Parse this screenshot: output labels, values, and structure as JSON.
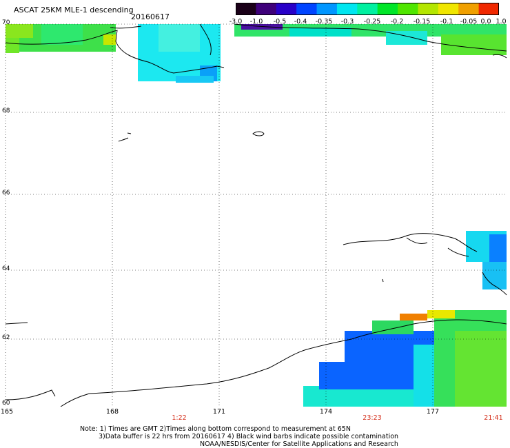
{
  "header": {
    "title": "ASCAT 25KM MLE-1 descending",
    "date": "20160617"
  },
  "colorbar": {
    "labels": [
      "-3.0",
      "-1.0",
      "-0.5",
      "-0.4",
      "-0.35",
      "-0.3",
      "-0.25",
      "-0.2",
      "-0.15",
      "-0.1",
      "-0.05",
      "0.0",
      "1.0"
    ],
    "colors": [
      "#1a0018",
      "#3e007a",
      "#2800c8",
      "#0044ff",
      "#0096ff",
      "#00e6f0",
      "#00f0a0",
      "#00e628",
      "#50e600",
      "#b4e600",
      "#f0e600",
      "#f0a000",
      "#f02800"
    ]
  },
  "map": {
    "lat_labels": [
      "70",
      "68",
      "66",
      "64",
      "62",
      "60"
    ],
    "lon_labels": [
      "165",
      "168",
      "171",
      "174",
      "177"
    ],
    "time_labels": [
      "1:22",
      "23:23",
      "21:41"
    ]
  },
  "notes": {
    "line1": "Note: 1) Times are GMT 2)Times along bottom correspond to measurement at 65N",
    "line2": "3)Data buffer is 22 hrs from 20160617 4) Black wind barbs indicate possible contamination",
    "line3": "NOAA/NESDIS/Center for Satellite Applications and Research"
  }
}
